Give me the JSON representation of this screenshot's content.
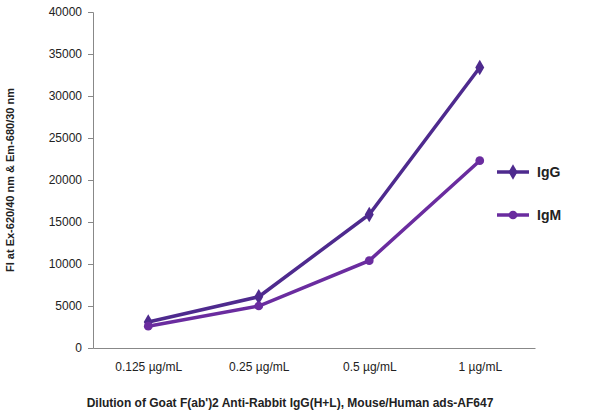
{
  "chart_data": {
    "type": "line",
    "x_label": "Dilution of Goat F(ab')2 Anti-Rabbit IgG(H+L), Mouse/Human ads-AF647",
    "y_label": "FI at Ex-620/40 nm & Em-680/30 nm",
    "categories": [
      "0.125 µg/mL",
      "0.25 µg/mL",
      "0.5 µg/mL",
      "1 µg/mL"
    ],
    "series": [
      {
        "name": "IgG",
        "color": "#4e2a8e",
        "marker": "diamond",
        "values": [
          3100,
          6100,
          15900,
          33400
        ]
      },
      {
        "name": "IgM",
        "color": "#6a2c9f",
        "marker": "circle",
        "values": [
          2600,
          5000,
          10400,
          22300
        ]
      }
    ],
    "ylim": [
      0,
      40000
    ],
    "yticks": [
      0,
      5000,
      10000,
      15000,
      20000,
      25000,
      30000,
      35000,
      40000
    ],
    "grid": false,
    "legend": "right"
  }
}
